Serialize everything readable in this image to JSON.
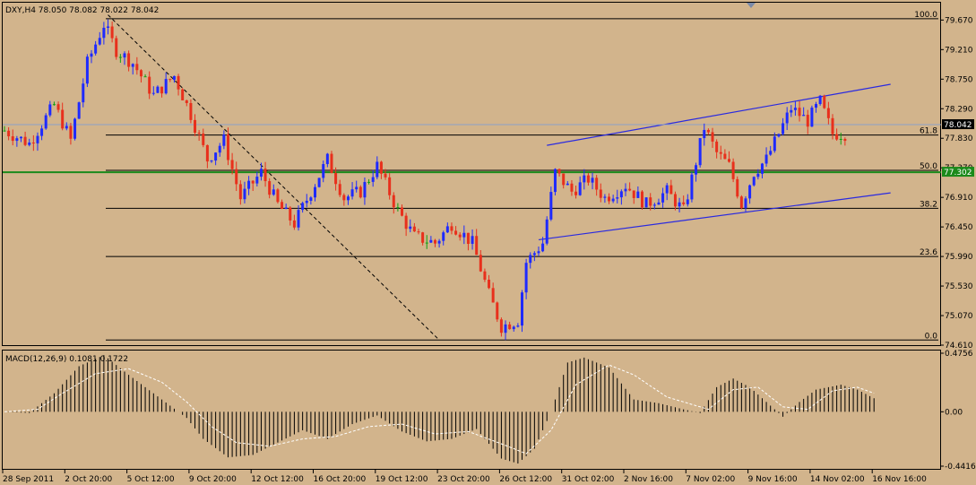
{
  "colors": {
    "background": "#d2b48c",
    "bull": "#1e2aff",
    "bear": "#e8301c",
    "neutral": "#11a011",
    "fib": "#000000",
    "support_line": "#1b8a1b",
    "channel": "#2a2ae0",
    "current_line": "#8aa0c8",
    "macd_hist": "#000000",
    "macd_signal": "#ffffff"
  },
  "chart_data": [
    {
      "type": "candlestick",
      "title": "DXY,H4  78.050 78.082 78.022 78.042",
      "symbol": "DXY,H4",
      "ohlc_header": "78.050 78.082 78.022 78.042",
      "y_axis_ticks": [
        "79.670",
        "79.210",
        "78.750",
        "78.290",
        "77.830",
        "77.370",
        "76.910",
        "76.450",
        "75.990",
        "75.530",
        "75.070",
        "74.610"
      ],
      "ylim": [
        74.61,
        79.94
      ],
      "current_price": "78.042",
      "support_level": "77.302",
      "fibonacci_levels": [
        {
          "label": "100.0",
          "value": 79.69
        },
        {
          "label": "61.8",
          "value": 77.88
        },
        {
          "label": "50.0",
          "value": 77.33
        },
        {
          "label": "38.2",
          "value": 76.74
        },
        {
          "label": "23.6",
          "value": 75.99
        },
        {
          "label": "0.0",
          "value": 74.69
        }
      ],
      "close_path": [
        [
          0,
          77.95
        ],
        [
          6,
          77.75
        ],
        [
          12,
          78.35
        ],
        [
          16,
          77.8
        ],
        [
          20,
          79.0
        ],
        [
          24,
          79.6
        ],
        [
          27,
          79.2
        ],
        [
          31,
          79.0
        ],
        [
          36,
          78.5
        ],
        [
          41,
          78.8
        ],
        [
          45,
          78.2
        ],
        [
          49,
          77.5
        ],
        [
          53,
          77.8
        ],
        [
          57,
          76.9
        ],
        [
          62,
          77.3
        ],
        [
          66,
          76.8
        ],
        [
          70,
          76.5
        ],
        [
          74,
          77.0
        ],
        [
          78,
          77.5
        ],
        [
          82,
          76.9
        ],
        [
          86,
          77.0
        ],
        [
          90,
          77.4
        ],
        [
          95,
          76.7
        ],
        [
          99,
          76.3
        ],
        [
          104,
          76.2
        ],
        [
          108,
          76.5
        ],
        [
          113,
          76.2
        ],
        [
          117,
          75.4
        ],
        [
          120,
          74.9
        ],
        [
          124,
          75.0
        ],
        [
          126,
          75.9
        ],
        [
          130,
          76.2
        ],
        [
          133,
          77.3
        ],
        [
          137,
          77.0
        ],
        [
          141,
          77.2
        ],
        [
          145,
          76.9
        ],
        [
          150,
          77.1
        ],
        [
          155,
          76.8
        ],
        [
          160,
          77.0
        ],
        [
          164,
          76.7
        ],
        [
          166,
          77.2
        ],
        [
          169,
          78.0
        ],
        [
          172,
          77.6
        ],
        [
          175,
          77.4
        ],
        [
          178,
          76.8
        ],
        [
          181,
          77.3
        ],
        [
          184,
          77.5
        ],
        [
          187,
          77.9
        ],
        [
          190,
          78.3
        ],
        [
          194,
          78.1
        ],
        [
          197,
          78.4
        ],
        [
          200,
          77.9
        ],
        [
          203,
          77.9
        ]
      ],
      "x_tick_labels": [
        "28 Sep 2011",
        "2 Oct 20:00",
        "5 Oct 12:00",
        "9 Oct 20:00",
        "12 Oct 12:00",
        "16 Oct 20:00",
        "19 Oct 12:00",
        "23 Oct 20:00",
        "26 Oct 12:00",
        "31 Oct 02:00",
        "2 Nov 16:00",
        "7 Nov 02:00",
        "9 Nov 16:00",
        "14 Nov 02:00",
        "16 Nov 16:00"
      ],
      "x_tick_bars": [
        0,
        15,
        30,
        45,
        60,
        75,
        90,
        105,
        120,
        135,
        150,
        165,
        180,
        195,
        210
      ],
      "bar_count": 204,
      "overlays": {
        "channel_upper": {
          "from": [
            131,
            77.72
          ],
          "to": [
            214,
            78.67
          ]
        },
        "channel_lower": {
          "from": [
            129,
            76.25
          ],
          "to": [
            214,
            76.98
          ]
        },
        "diagonal_dashed": {
          "from": [
            25,
            79.75
          ],
          "to": [
            105,
            74.69
          ]
        }
      }
    },
    {
      "type": "bar",
      "title": "MACD(12,26,9) 0.1081 0.1722",
      "label": "MACD(12,26,9)",
      "values_text": "0.1081 0.1722",
      "y_axis_ticks": [
        "0.4756",
        "0.00",
        "-0.4416"
      ],
      "ylim": [
        -0.4416,
        0.4756
      ],
      "histogram_path": [
        [
          0,
          0.0
        ],
        [
          6,
          -0.01
        ],
        [
          12,
          0.15
        ],
        [
          18,
          0.37
        ],
        [
          24,
          0.46
        ],
        [
          30,
          0.3
        ],
        [
          36,
          0.15
        ],
        [
          40,
          0.05
        ],
        [
          44,
          -0.05
        ],
        [
          48,
          -0.22
        ],
        [
          54,
          -0.37
        ],
        [
          60,
          -0.35
        ],
        [
          66,
          -0.25
        ],
        [
          72,
          -0.15
        ],
        [
          78,
          -0.22
        ],
        [
          84,
          -0.1
        ],
        [
          90,
          -0.03
        ],
        [
          96,
          -0.16
        ],
        [
          102,
          -0.24
        ],
        [
          108,
          -0.22
        ],
        [
          114,
          -0.14
        ],
        [
          120,
          -0.38
        ],
        [
          124,
          -0.42
        ],
        [
          128,
          -0.3
        ],
        [
          132,
          0.0
        ],
        [
          136,
          0.4
        ],
        [
          140,
          0.44
        ],
        [
          146,
          0.36
        ],
        [
          152,
          0.1
        ],
        [
          158,
          0.07
        ],
        [
          164,
          0.02
        ],
        [
          168,
          -0.01
        ],
        [
          172,
          0.2
        ],
        [
          176,
          0.27
        ],
        [
          180,
          0.2
        ],
        [
          184,
          0.08
        ],
        [
          188,
          -0.04
        ],
        [
          192,
          0.08
        ],
        [
          196,
          0.18
        ],
        [
          202,
          0.22
        ],
        [
          206,
          0.18
        ],
        [
          210,
          0.11
        ]
      ],
      "signal_path": [
        [
          0,
          0.0
        ],
        [
          8,
          0.02
        ],
        [
          14,
          0.15
        ],
        [
          22,
          0.31
        ],
        [
          30,
          0.35
        ],
        [
          38,
          0.24
        ],
        [
          44,
          0.08
        ],
        [
          50,
          -0.12
        ],
        [
          56,
          -0.25
        ],
        [
          64,
          -0.28
        ],
        [
          72,
          -0.22
        ],
        [
          80,
          -0.2
        ],
        [
          88,
          -0.12
        ],
        [
          96,
          -0.1
        ],
        [
          104,
          -0.18
        ],
        [
          112,
          -0.16
        ],
        [
          120,
          -0.26
        ],
        [
          126,
          -0.34
        ],
        [
          132,
          -0.15
        ],
        [
          138,
          0.22
        ],
        [
          146,
          0.38
        ],
        [
          152,
          0.3
        ],
        [
          160,
          0.12
        ],
        [
          166,
          0.06
        ],
        [
          170,
          0.02
        ],
        [
          176,
          0.18
        ],
        [
          182,
          0.2
        ],
        [
          188,
          0.04
        ],
        [
          194,
          0.02
        ],
        [
          200,
          0.17
        ],
        [
          206,
          0.2
        ],
        [
          210,
          0.15
        ]
      ]
    }
  ]
}
